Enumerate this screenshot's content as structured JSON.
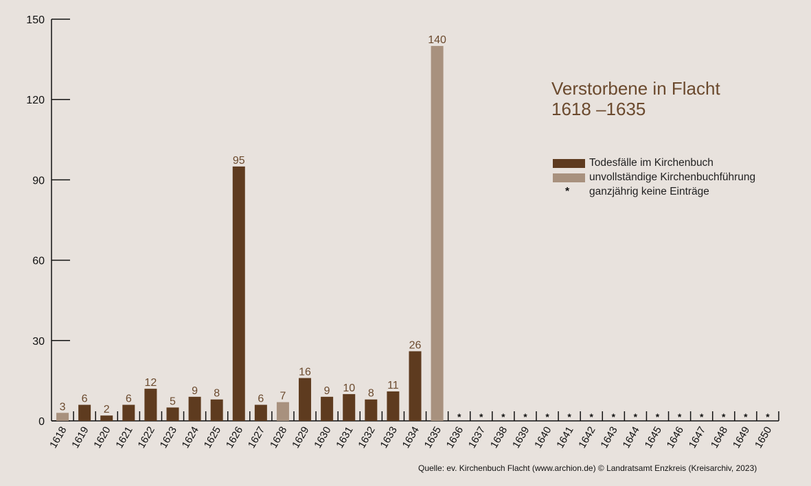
{
  "title": {
    "line1": "Verstorbene in Flacht",
    "line2": "1618 –1635"
  },
  "legend": [
    {
      "label": "Todesfälle im Kirchenbuch",
      "color": "#5e3b1f",
      "kind": "swatch"
    },
    {
      "label": "unvollständige Kirchenbuchführung",
      "color": "#a8917e",
      "kind": "swatch"
    },
    {
      "label": "ganzjährig keine Einträge",
      "symbol": "*",
      "kind": "star"
    }
  ],
  "source": "Quelle: ev. Kirchenbuch Flacht (www.archion.de)  © Landratsamt Enzkreis (Kreisarchiv, 2023)",
  "colors": {
    "complete": "#5e3b1f",
    "incomplete": "#a8917e",
    "label": "#6b4a2e",
    "background": "#e8e2dd"
  },
  "chart_data": {
    "type": "bar",
    "title": "Verstorbene in Flacht 1618 –1635",
    "ylim": [
      0,
      150
    ],
    "yticks": [
      0,
      30,
      60,
      90,
      120,
      150
    ],
    "categories": [
      "1618",
      "1619",
      "1620",
      "1621",
      "1622",
      "1623",
      "1624",
      "1625",
      "1626",
      "1627",
      "1628",
      "1629",
      "1630",
      "1631",
      "1632",
      "1633",
      "1634",
      "1635",
      "1636",
      "1637",
      "1638",
      "1639",
      "1640",
      "1641",
      "1642",
      "1643",
      "1644",
      "1645",
      "1646",
      "1647",
      "1648",
      "1649",
      "1650"
    ],
    "values": [
      3,
      6,
      2,
      6,
      12,
      5,
      9,
      8,
      95,
      6,
      7,
      16,
      9,
      10,
      8,
      11,
      26,
      140,
      null,
      null,
      null,
      null,
      null,
      null,
      null,
      null,
      null,
      null,
      null,
      null,
      null,
      null,
      null
    ],
    "status": [
      "incomplete",
      "complete",
      "complete",
      "complete",
      "complete",
      "complete",
      "complete",
      "complete",
      "complete",
      "complete",
      "incomplete",
      "complete",
      "complete",
      "complete",
      "complete",
      "complete",
      "complete",
      "incomplete",
      "none",
      "none",
      "none",
      "none",
      "none",
      "none",
      "none",
      "none",
      "none",
      "none",
      "none",
      "none",
      "none",
      "none",
      "none"
    ],
    "no_entry_symbol": "*",
    "grid": false
  }
}
